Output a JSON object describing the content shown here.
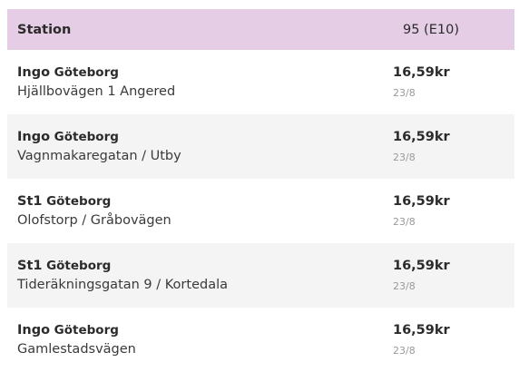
{
  "header": {
    "station": "Station",
    "fuel": "95 (E10)"
  },
  "rows": [
    {
      "brand": "Ingo",
      "city": "Göteborg",
      "address": "Hjällbovägen 1 Angered",
      "price": "16,59kr",
      "date": "23/8"
    },
    {
      "brand": "Ingo",
      "city": "Göteborg",
      "address": "Vagnmakaregatan / Utby",
      "price": "16,59kr",
      "date": "23/8"
    },
    {
      "brand": "St1",
      "city": "Göteborg",
      "address": "Olofstorp / Gråbovägen",
      "price": "16,59kr",
      "date": "23/8"
    },
    {
      "brand": "St1",
      "city": "Göteborg",
      "address": "Tideräkningsgatan 9 / Kortedala",
      "price": "16,59kr",
      "date": "23/8"
    },
    {
      "brand": "Ingo",
      "city": "Göteborg",
      "address": "Gamlestadsvägen",
      "price": "16,59kr",
      "date": "23/8"
    }
  ]
}
